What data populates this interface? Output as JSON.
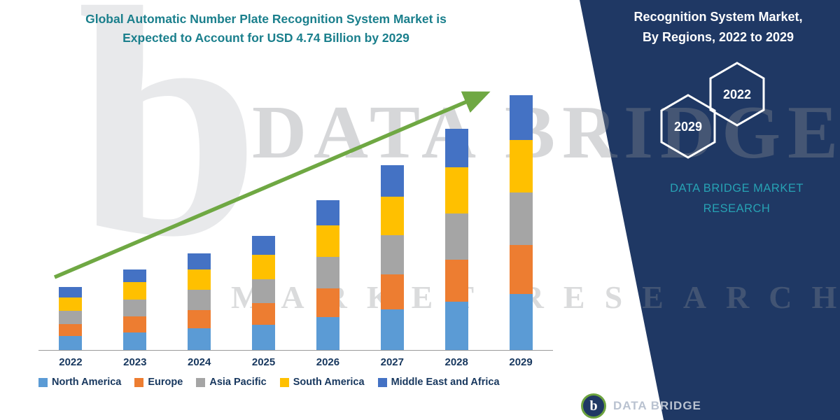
{
  "header": {
    "title_line1": "Global Automatic Number Plate Recognition System Market is",
    "title_line2": "Expected to Account for USD 4.74 Billion by 2029"
  },
  "side_panel": {
    "title_line1": "Recognition System Market,",
    "title_line2": "By Regions, 2022 to 2029",
    "hexagons": [
      "2029",
      "2022"
    ],
    "brand_line1": "DATA BRIDGE MARKET",
    "brand_line2": "RESEARCH",
    "panel_color": "#1F3864",
    "brand_color": "#27A2B4"
  },
  "watermark": {
    "letter": "b",
    "line1": "DATA BRIDGE",
    "line2": "MARKET RESEARCH"
  },
  "footer_logo": {
    "text": "DATA BRIDGE"
  },
  "chart_data": {
    "type": "bar",
    "stacked": true,
    "title": "Global Automatic Number Plate Recognition System Market is Expected to Account for USD 4.74 Billion by 2029",
    "unit": "USD Billion",
    "categories": [
      "2022",
      "2023",
      "2024",
      "2025",
      "2026",
      "2027",
      "2028",
      "2029"
    ],
    "series": [
      {
        "name": "North America",
        "color": "#5B9BD5",
        "values": [
          0.26,
          0.33,
          0.4,
          0.47,
          0.61,
          0.76,
          0.9,
          1.04
        ]
      },
      {
        "name": "Europe",
        "color": "#ED7D31",
        "values": [
          0.22,
          0.29,
          0.34,
          0.4,
          0.53,
          0.65,
          0.78,
          0.91
        ]
      },
      {
        "name": "Asia Pacific",
        "color": "#A5A5A5",
        "values": [
          0.25,
          0.32,
          0.38,
          0.45,
          0.59,
          0.72,
          0.86,
          0.98
        ]
      },
      {
        "name": "South America",
        "color": "#FFC000",
        "values": [
          0.25,
          0.32,
          0.38,
          0.45,
          0.59,
          0.72,
          0.86,
          0.98
        ]
      },
      {
        "name": "Middle East and Africa",
        "color": "#4472C4",
        "values": [
          0.19,
          0.24,
          0.3,
          0.35,
          0.47,
          0.59,
          0.71,
          0.83
        ]
      }
    ],
    "totals": [
      1.17,
      1.5,
      1.8,
      2.12,
      2.79,
      3.44,
      4.11,
      4.74
    ],
    "ylim": [
      0,
      4.74
    ],
    "legend_position": "bottom",
    "grid": false,
    "trend_arrow": true,
    "arrow_color": "#6FA843"
  }
}
